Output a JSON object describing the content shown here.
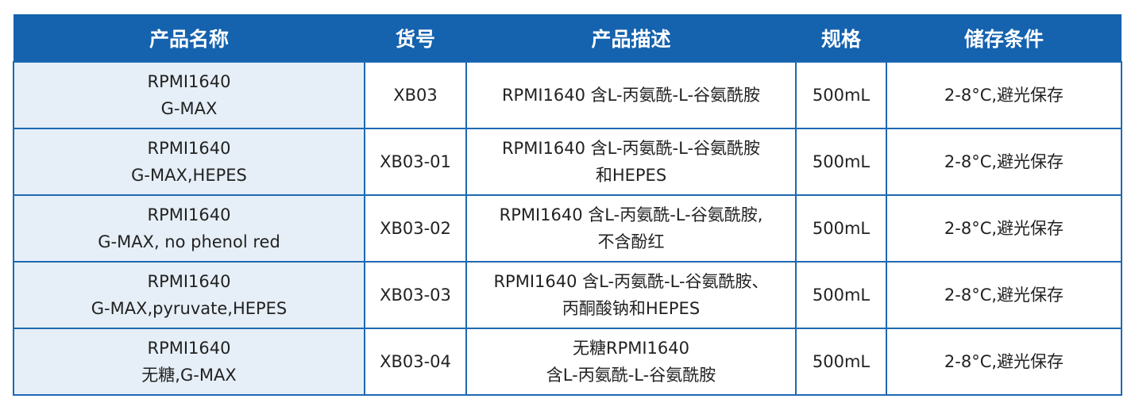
{
  "colors": {
    "header_bg": "#1562ae",
    "border": "#1d69b3",
    "name_col_bg": "#e6eff7"
  },
  "headers": [
    "产品名称",
    "货号",
    "产品描述",
    "规格",
    "储存条件"
  ],
  "rows": [
    {
      "name": [
        "RPMI1640",
        "G-MAX"
      ],
      "code": "XB03",
      "desc": [
        "RPMI1640 含L-丙氨酰-L-谷氨酰胺"
      ],
      "spec": "500mL",
      "storage": "2-8°C,避光保存"
    },
    {
      "name": [
        "RPMI1640",
        "G-MAX,HEPES"
      ],
      "code": "XB03-01",
      "desc": [
        "RPMI1640 含L-丙氨酰-L-谷氨酰胺",
        "和HEPES"
      ],
      "spec": "500mL",
      "storage": "2-8°C,避光保存"
    },
    {
      "name": [
        "RPMI1640",
        "G-MAX, no phenol red"
      ],
      "code": "XB03-02",
      "desc": [
        "RPMI1640 含L-丙氨酰-L-谷氨酰胺,",
        "不含酚红"
      ],
      "spec": "500mL",
      "storage": "2-8°C,避光保存"
    },
    {
      "name": [
        "RPMI1640",
        "G-MAX,pyruvate,HEPES"
      ],
      "code": "XB03-03",
      "desc": [
        "RPMI1640 含L-丙氨酰-L-谷氨酰胺、",
        "丙酮酸钠和HEPES"
      ],
      "spec": "500mL",
      "storage": "2-8°C,避光保存"
    },
    {
      "name": [
        "RPMI1640",
        "无糖,G-MAX"
      ],
      "code": "XB03-04",
      "desc": [
        "无糖RPMI1640",
        "含L-丙氨酰-L-谷氨酰胺"
      ],
      "spec": "500mL",
      "storage": "2-8°C,避光保存"
    }
  ]
}
